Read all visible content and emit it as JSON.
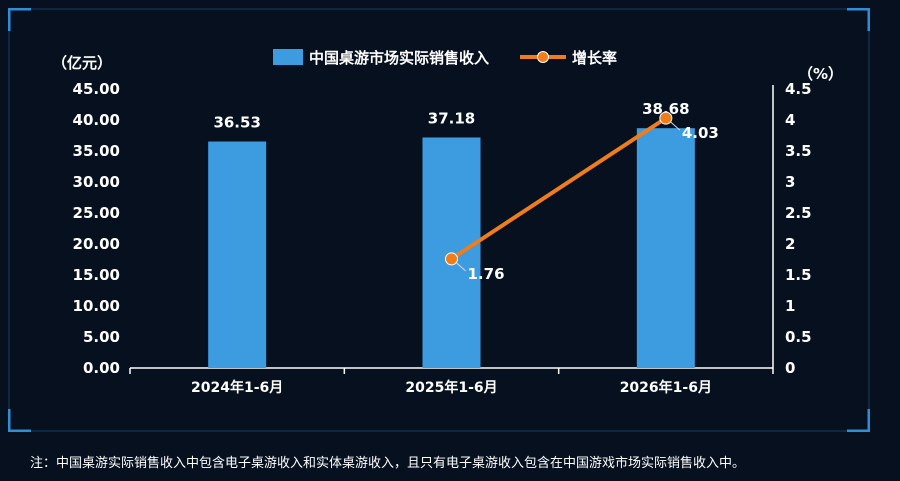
{
  "chart_data": {
    "type": "bar",
    "categories": [
      "2024年1-6月",
      "2025年1-6月",
      "2026年1-6月"
    ],
    "series": [
      {
        "name": "中国桌游市场实际销售收入",
        "type": "bar",
        "axis": "left",
        "values": [
          36.53,
          37.18,
          38.68
        ],
        "labels": [
          "36.53",
          "37.18",
          "38.68"
        ],
        "color": "#3d9be0"
      },
      {
        "name": "增长率",
        "type": "line",
        "axis": "right",
        "values": [
          null,
          1.76,
          4.03
        ],
        "labels": [
          null,
          "1.76",
          "4.03"
        ],
        "color": "#f07d1a"
      }
    ],
    "y_left": {
      "label": "（亿元）",
      "ylim": [
        0,
        45
      ],
      "ticks": [
        "0.00",
        "5.00",
        "10.00",
        "15.00",
        "20.00",
        "25.00",
        "30.00",
        "35.00",
        "40.00",
        "45.00"
      ]
    },
    "y_right": {
      "label": "（%）",
      "ylim": [
        0,
        4.5
      ],
      "ticks": [
        "0",
        "0.5",
        "1",
        "1.5",
        "2",
        "2.5",
        "3",
        "3.5",
        "4",
        "4.5"
      ]
    },
    "grid": false,
    "legend_position": "top-center"
  },
  "footnote": "注：中国桌游实际销售收入中包含电子桌游收入和实体桌游收入，且只有电子桌游收入包含在中国游戏市场实际销售收入中。",
  "colors": {
    "background": "#06101f",
    "frame": "#1b3e62",
    "corner": "#2f8ed6",
    "axis": "#ffffff"
  }
}
